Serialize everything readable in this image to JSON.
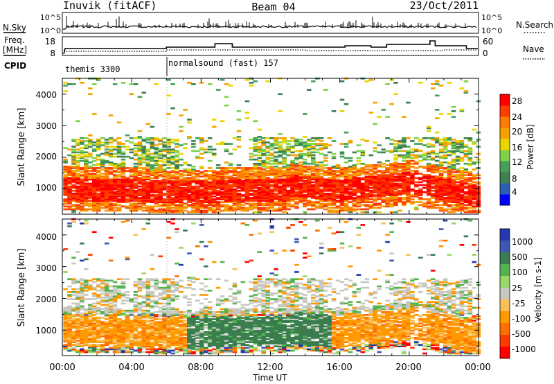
{
  "header": {
    "station": "Inuvik (fitACF)",
    "beam": "Beam 04",
    "date": "23/Oct/2011"
  },
  "top_panels": {
    "nsky_label": "N.Sky",
    "nsearch_label": "N.Search",
    "noise_ticks_left": [
      "10^5",
      "10^0"
    ],
    "noise_ticks_right": [
      "10^5",
      "10^0"
    ],
    "freq_label": "Freq.",
    "freq_unit": "[MHz]",
    "freq_ticks": [
      "18",
      "8"
    ],
    "nave_label": "Nave",
    "nave_ticks": [
      "60",
      "0"
    ],
    "cpid_label": "CPID",
    "cpid_segments": [
      "themis 3300",
      "normalsound (fast) 157"
    ]
  },
  "colors": {
    "power": [
      "#0000ff",
      "#2a5fb5",
      "#3f7f50",
      "#46a05a",
      "#7fd14b",
      "#e8d600",
      "#f5a200",
      "#ff7a00",
      "#ff3c00",
      "#ff0000"
    ],
    "velocity": [
      "#2538ae",
      "#3f57b4",
      "#3a7d4f",
      "#55b24f",
      "#9bd86a",
      "#c8c8c0",
      "#f7c05a",
      "#ff9900",
      "#ff7000",
      "#ff3a00",
      "#ff0000"
    ]
  },
  "chart_data": [
    {
      "type": "heatmap",
      "title": "Power",
      "xlabel": "Time UT",
      "ylabel": "Slant Range [km]",
      "x_ticks": [
        "00:00",
        "04:00",
        "08:00",
        "12:00",
        "16:00",
        "20:00",
        "00:00"
      ],
      "y_ticks": [
        "1000",
        "2000",
        "3000",
        "4000"
      ],
      "ylim": [
        200,
        4500
      ],
      "colorbar_label": "Power [dB]",
      "colorbar_ticks": [
        "4",
        "8",
        "12",
        "16",
        "20",
        "24",
        "28"
      ]
    },
    {
      "type": "heatmap",
      "title": "Velocity",
      "xlabel": "Time UT",
      "ylabel": "Slant Range [km]",
      "x_ticks": [
        "00:00",
        "04:00",
        "08:00",
        "12:00",
        "16:00",
        "20:00",
        "00:00"
      ],
      "y_ticks": [
        "1000",
        "2000",
        "3000",
        "4000"
      ],
      "ylim": [
        200,
        4500
      ],
      "colorbar_label": "Velocity [m s-1]",
      "colorbar_ticks": [
        "1000",
        "500",
        "100",
        "25",
        "-25",
        "-100",
        "-500",
        "-1000"
      ]
    }
  ]
}
